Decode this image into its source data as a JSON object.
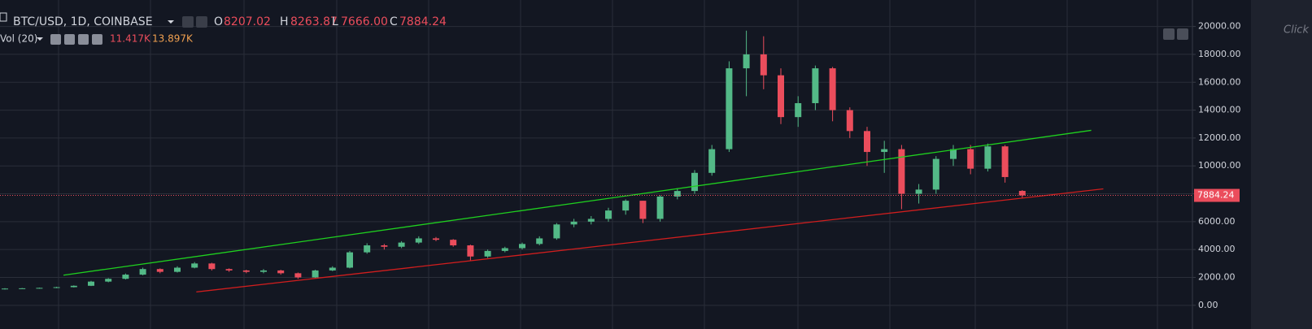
{
  "chart_data": {
    "type": "candlestick",
    "symbol": "BTC/USD, 1D, COINBASE",
    "ohlc_letters": [
      "O",
      "H",
      "L",
      "C"
    ],
    "low_label": "7666.00",
    "volume_legend": {
      "name": "Vol (20)",
      "values": [
        "11.417K",
        "13.897K"
      ]
    },
    "side_text": "Click",
    "up_color": "#53b987",
    "down_color": "#eb4d5c",
    "open": [
      1150,
      1200,
      1220,
      1250,
      1300,
      1400,
      1700,
      1900,
      2200,
      2600,
      2400,
      2700,
      3000,
      2600,
      2500,
      2400,
      2500,
      2300,
      2000,
      2500,
      2700,
      3800,
      4300,
      4200,
      4500,
      4800,
      4700,
      4300,
      3500,
      3900,
      4100,
      4400,
      4800,
      5800,
      6000,
      6200,
      6800,
      7500,
      6200,
      7800,
      8200,
      9500,
      11200,
      17000,
      18000,
      16500,
      13500,
      14500,
      17000,
      14000,
      12500,
      11000,
      11200,
      8000,
      8300,
      10500,
      11200,
      9800,
      11400,
      8207.02
    ],
    "high": [
      1230,
      1240,
      1270,
      1330,
      1430,
      1750,
      1950,
      2280,
      2700,
      2650,
      2800,
      3100,
      3050,
      2650,
      2550,
      2600,
      2550,
      2350,
      2550,
      2800,
      3900,
      4450,
      4400,
      4600,
      4950,
      4900,
      4750,
      4350,
      4000,
      4200,
      4500,
      4950,
      5900,
      6200,
      6400,
      7000,
      7600,
      7500,
      7900,
      8400,
      9700,
      11500,
      17500,
      19700,
      19300,
      17000,
      15000,
      17200,
      17100,
      14200,
      12800,
      11800,
      11500,
      8700,
      10700,
      11500,
      11500,
      11600,
      11500,
      8263.87
    ],
    "low": [
      1130,
      1180,
      1200,
      1230,
      1280,
      1380,
      1650,
      1850,
      2150,
      2300,
      2350,
      2650,
      2500,
      2400,
      2300,
      2300,
      2200,
      1900,
      1950,
      2450,
      2650,
      3700,
      4000,
      4100,
      4400,
      4600,
      4200,
      3200,
      3400,
      3800,
      4000,
      4300,
      4700,
      5600,
      5800,
      6000,
      6500,
      5900,
      6000,
      7600,
      8000,
      9300,
      11000,
      15000,
      15500,
      13000,
      12800,
      14000,
      13200,
      12000,
      10000,
      9500,
      6900,
      7300,
      8000,
      10000,
      9400,
      9600,
      8800,
      7666
    ],
    "close": [
      1200,
      1220,
      1250,
      1300,
      1400,
      1700,
      1900,
      2200,
      2600,
      2400,
      2700,
      3000,
      2600,
      2500,
      2400,
      2500,
      2300,
      2000,
      2500,
      2700,
      3800,
      4300,
      4200,
      4500,
      4800,
      4700,
      4300,
      3500,
      3900,
      4100,
      4400,
      4800,
      5800,
      6000,
      6200,
      6800,
      7500,
      6200,
      7800,
      8200,
      9500,
      11200,
      17000,
      18000,
      16500,
      13500,
      14500,
      17000,
      14000,
      12500,
      11000,
      11200,
      8000,
      8300,
      10500,
      11200,
      9800,
      11400,
      9200,
      7884.24
    ],
    "last_price": 7884.24,
    "trendlines": [
      {
        "color": "#1fd01f",
        "x": [
          3.4,
          63.0
        ],
        "y": [
          2160,
          12550
        ]
      },
      {
        "color": "#d01e1e",
        "x": [
          11.1,
          63.7
        ],
        "y": [
          960,
          8350
        ]
      }
    ],
    "ylim": [
      -1700,
      21900
    ],
    "yticks": [
      {
        "value": 0,
        "label": "0.00"
      },
      {
        "value": 2000,
        "label": "2000.00"
      },
      {
        "value": 4000,
        "label": "4000.00"
      },
      {
        "value": 6000,
        "label": "6000.00"
      },
      {
        "value": 8000,
        "label": "8000.00"
      },
      {
        "value": 10000,
        "label": "10000.00"
      },
      {
        "value": 12000,
        "label": "12000.00"
      },
      {
        "value": 14000,
        "label": "14000.00"
      },
      {
        "value": 16000,
        "label": "16000.00"
      },
      {
        "value": 18000,
        "label": "18000.00"
      },
      {
        "value": 20000,
        "label": "20000.00"
      }
    ],
    "grid": true
  }
}
